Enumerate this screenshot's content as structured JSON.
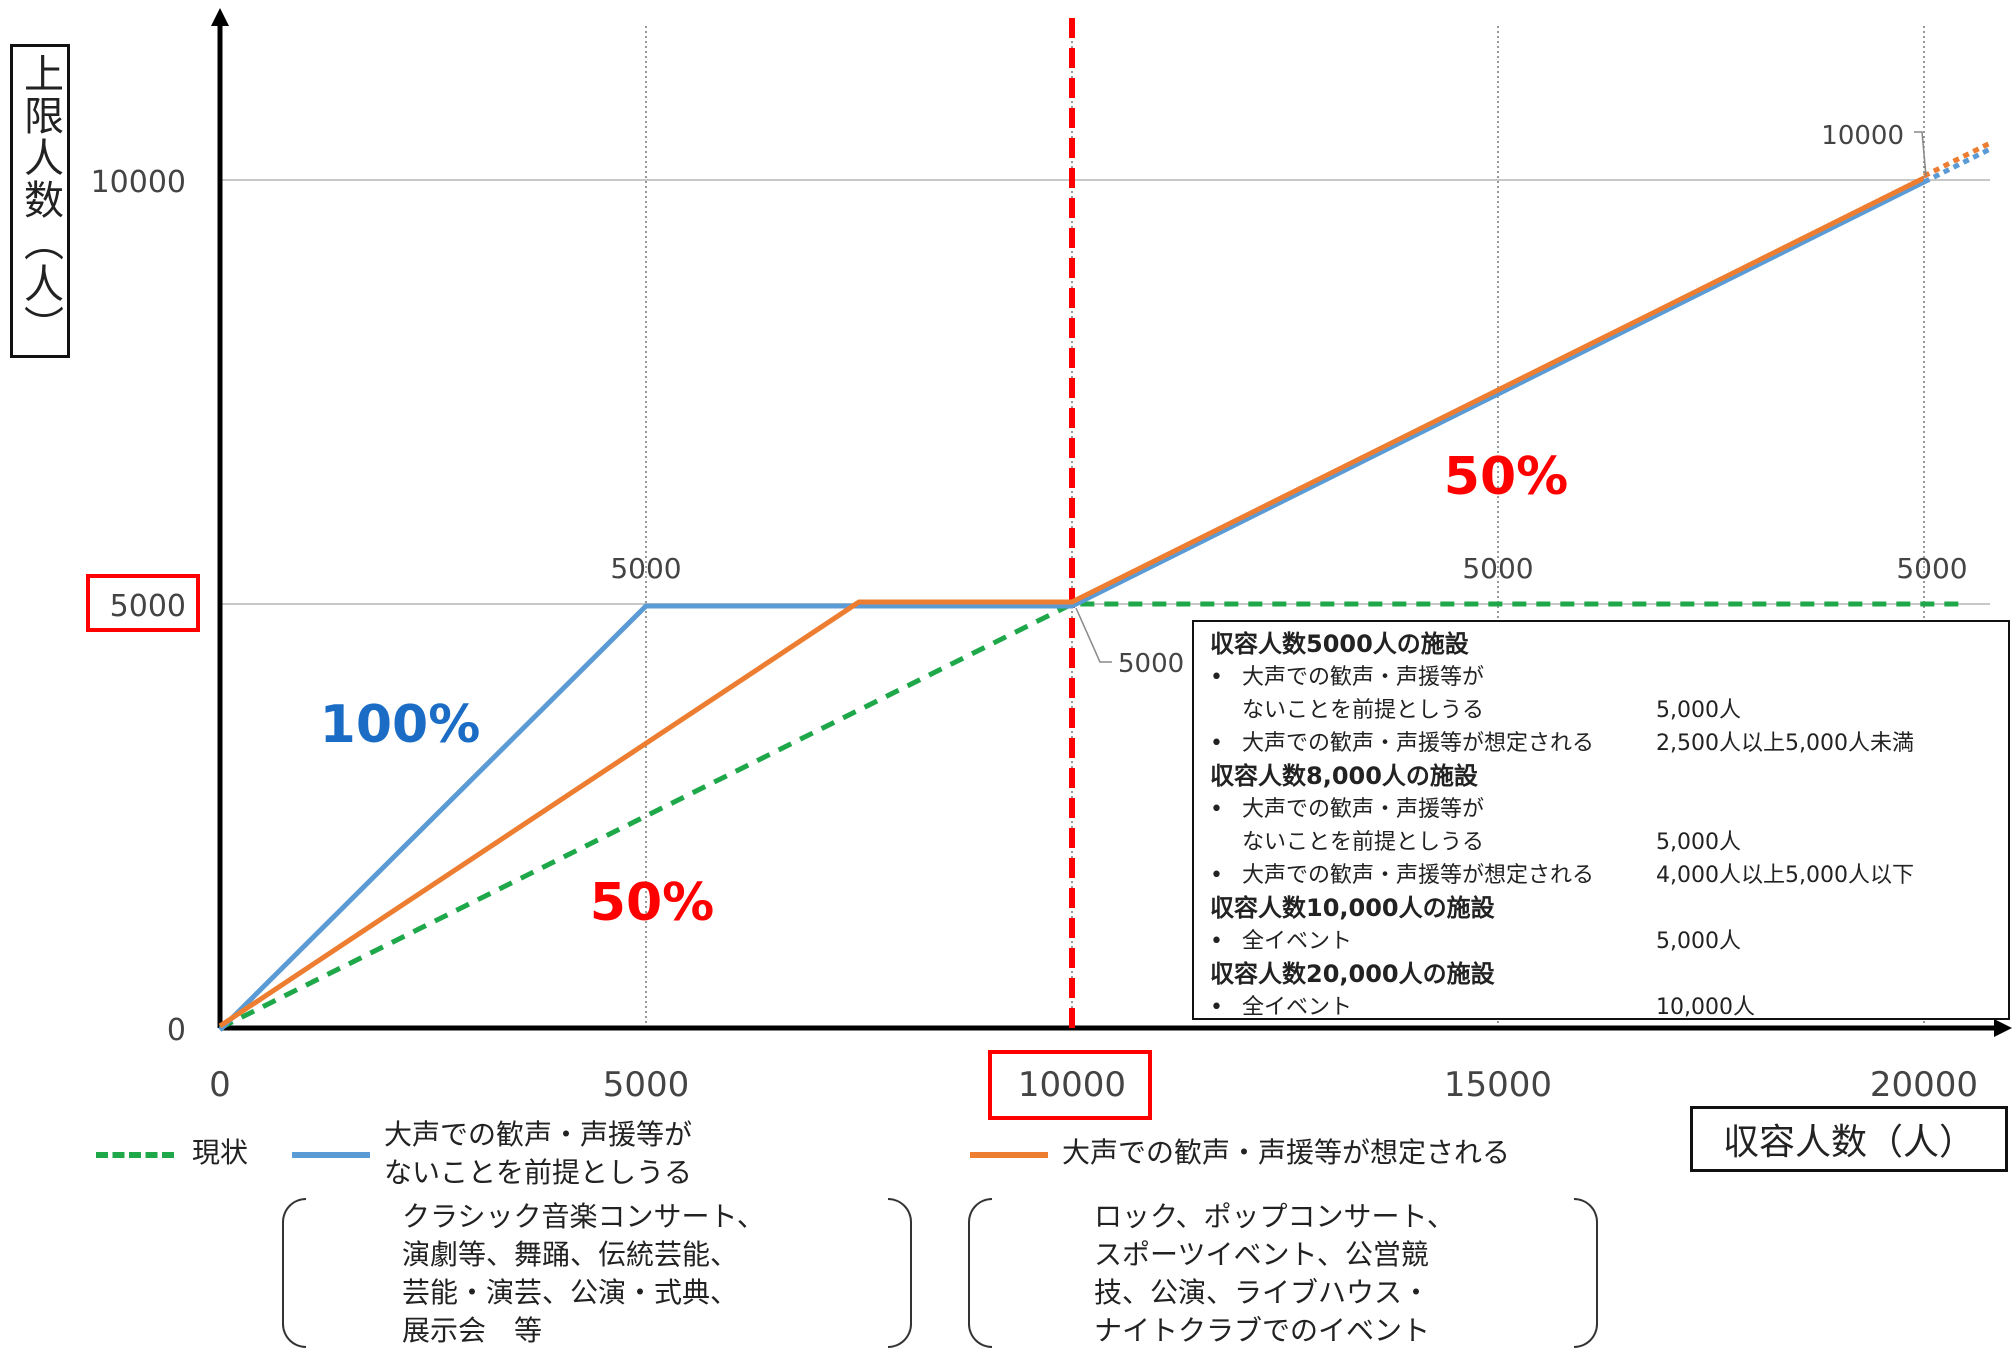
{
  "chart_data": {
    "type": "line",
    "ylabel": "上限人数（人）",
    "xlabel": "収容人数（人）",
    "xlim": [
      0,
      20000
    ],
    "ylim": [
      0,
      10000
    ],
    "x_ticks": [
      "0",
      "5000",
      "10000",
      "15000",
      "20000"
    ],
    "y_ticks": [
      "0",
      "5000",
      "10000"
    ],
    "grid": "vertical dotted lines at 5000, 10000, 15000, 20000; horizontal solid lines at 5000 and 10000",
    "legend_position": "bottom",
    "colors": {
      "current": "#1ea84a",
      "blue": "#5b9bd5",
      "orange": "#ed7d31",
      "red": "#ff0000",
      "blue_label": "#1a6cc4"
    },
    "series": [
      {
        "name": "現状",
        "style": "dashed",
        "x": [
          0,
          10000,
          20500
        ],
        "y": [
          0,
          5000,
          5000
        ]
      },
      {
        "name": "大声での歓声・声援等がないことを前提としうる",
        "style": "solid",
        "x": [
          0,
          5000,
          10000,
          20000
        ],
        "y": [
          0,
          5000,
          5000,
          10000
        ]
      },
      {
        "name": "大声での歓声・声援等が想定される",
        "style": "solid",
        "x": [
          0,
          7500,
          10000,
          20000
        ],
        "y": [
          0,
          5000,
          5000,
          10000
        ]
      }
    ],
    "annotations": {
      "pct_100": "100%",
      "pct_50_low": "50%",
      "pct_50_high": "50%",
      "lbl_5000_at_5000": "5000",
      "lbl_5000_at_10000": "5000",
      "lbl_5000_at_15000": "5000",
      "lbl_5000_at_20000": "5000",
      "lbl_10000_at_20000": "10000"
    }
  },
  "legend": {
    "current": "現状",
    "blue_line1": "大声での歓声・声援等が",
    "blue_line2": "ないことを前提としうる",
    "orange": "大声での歓声・声援等が想定される"
  },
  "infobox": {
    "f1_title": "収容人数5000人の施設",
    "f1_r1_lab1": "大声での歓声・声援等が",
    "f1_r1_lab2": "ないことを前提としうる",
    "f1_r1_val": "5,000人",
    "f1_r2_lab": "大声での歓声・声援等が想定される",
    "f1_r2_val": "2,500人以上5,000人未満",
    "f2_title": "収容人数8,000人の施設",
    "f2_r1_lab1": "大声での歓声・声援等が",
    "f2_r1_lab2": "ないことを前提としうる",
    "f2_r1_val": "5,000人",
    "f2_r2_lab": "大声での歓声・声援等が想定される",
    "f2_r2_val": "4,000人以上5,000人以下",
    "f3_title": "収容人数10,000人の施設",
    "f3_r1_lab": "全イベント",
    "f3_r1_val": "5,000人",
    "f4_title": "収容人数20,000人の施設",
    "f4_r1_lab": "全イベント",
    "f4_r1_val": "10,000人",
    "bullet": "•"
  },
  "notes": {
    "left": [
      "クラシック音楽コンサート、",
      "演劇等、舞踊、伝統芸能、",
      "芸能・演芸、公演・式典、",
      "展示会　等"
    ],
    "right": [
      "ロック、ポップコンサート、",
      "スポーツイベント、公営競",
      "技、公演、ライブハウス・",
      "ナイトクラブでのイベント"
    ]
  }
}
